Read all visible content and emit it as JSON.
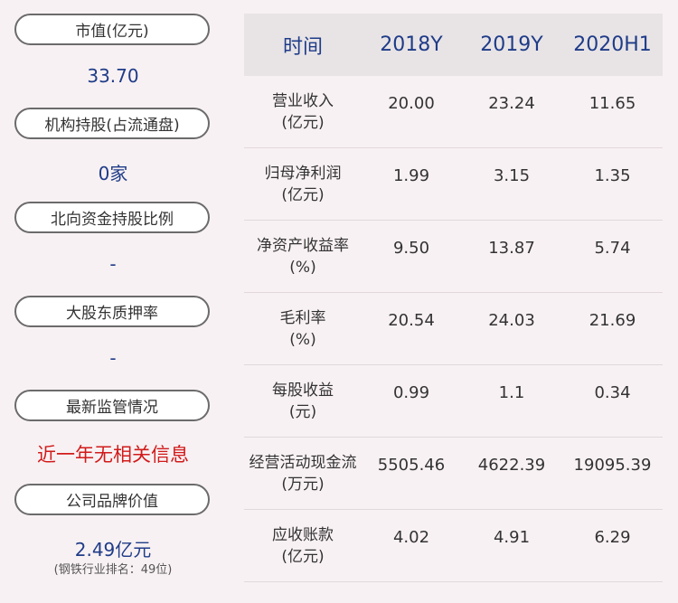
{
  "left": {
    "market_cap_label": "市值(亿元)",
    "market_cap_value": "33.70",
    "institutions_label": "机构持股(占流通盘)",
    "institutions_value": "0家",
    "northbound_label": "北向资金持股比例",
    "northbound_value": "-",
    "pledge_label": "大股东质押率",
    "pledge_value": "-",
    "regulation_label": "最新监管情况",
    "regulation_value": "近一年无相关信息",
    "brand_label": "公司品牌价值",
    "brand_value": "2.49亿元",
    "brand_rank": "(钢铁行业排名：49位)"
  },
  "table": {
    "headers": [
      "时间",
      "2018Y",
      "2019Y",
      "2020H1"
    ],
    "rows": [
      {
        "name": "营业收入",
        "unit": "(亿元)",
        "values": [
          "20.00",
          "23.24",
          "11.65"
        ]
      },
      {
        "name": "归母净利润",
        "unit": "(亿元)",
        "values": [
          "1.99",
          "3.15",
          "1.35"
        ]
      },
      {
        "name": "净资产收益率",
        "unit": "(%)",
        "values": [
          "9.50",
          "13.87",
          "5.74"
        ]
      },
      {
        "name": "毛利率",
        "unit": "(%)",
        "values": [
          "20.54",
          "24.03",
          "21.69"
        ]
      },
      {
        "name": "每股收益",
        "unit": "(元)",
        "values": [
          "0.99",
          "1.1",
          "0.34"
        ]
      },
      {
        "name": "经营活动现金流",
        "unit": "(万元)",
        "values": [
          "5505.46",
          "4622.39",
          "19095.39"
        ]
      },
      {
        "name": "应收账款",
        "unit": "(亿元)",
        "values": [
          "4.02",
          "4.91",
          "6.29"
        ]
      }
    ]
  },
  "colors": {
    "background": "#f8f1f3",
    "value_blue": "#1f3c88",
    "alert_red": "#d11a1a",
    "header_bg": "#e8e4e6"
  }
}
